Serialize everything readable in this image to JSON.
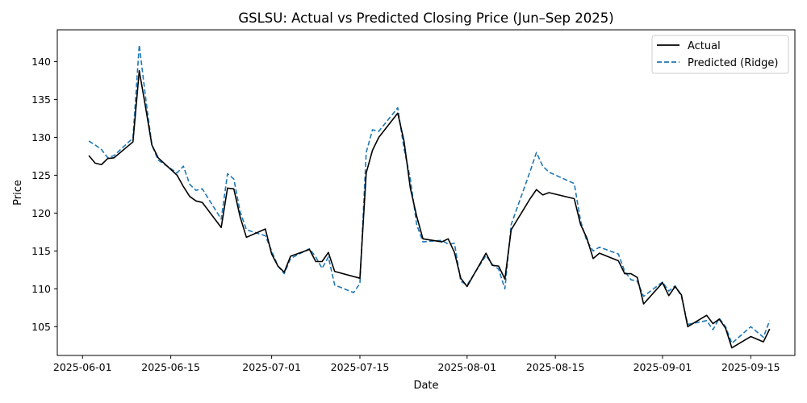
{
  "chart_data": {
    "type": "line",
    "title": "GSLSU: Actual vs Predicted Closing Price (Jun–Sep 2025)",
    "xlabel": "Date",
    "ylabel": "Price",
    "x_ticks": [
      "2025-06-01",
      "2025-06-15",
      "2025-07-01",
      "2025-07-15",
      "2025-08-01",
      "2025-08-15",
      "2025-09-01",
      "2025-09-15"
    ],
    "y_ticks": [
      105,
      110,
      115,
      120,
      125,
      130,
      135,
      140
    ],
    "xlim": [
      "2025-05-28",
      "2025-09-22"
    ],
    "ylim": [
      101.2,
      144.2
    ],
    "grid": false,
    "legend_position": "top-right",
    "series": [
      {
        "name": "Actual",
        "color": "#000000",
        "style": "solid",
        "points": [
          [
            "2025-06-02",
            127.6
          ],
          [
            "2025-06-03",
            126.6
          ],
          [
            "2025-06-04",
            126.4
          ],
          [
            "2025-06-05",
            127.2
          ],
          [
            "2025-06-06",
            127.3
          ],
          [
            "2025-06-09",
            129.4
          ],
          [
            "2025-06-10",
            138.8
          ],
          [
            "2025-06-11",
            134.0
          ],
          [
            "2025-06-12",
            129.0
          ],
          [
            "2025-06-13",
            127.3
          ],
          [
            "2025-06-16",
            125.0
          ],
          [
            "2025-06-17",
            123.5
          ],
          [
            "2025-06-18",
            122.2
          ],
          [
            "2025-06-19",
            121.6
          ],
          [
            "2025-06-20",
            121.4
          ],
          [
            "2025-06-23",
            118.1
          ],
          [
            "2025-06-24",
            123.3
          ],
          [
            "2025-06-25",
            123.2
          ],
          [
            "2025-06-26",
            119.5
          ],
          [
            "2025-06-27",
            116.8
          ],
          [
            "2025-06-30",
            117.9
          ],
          [
            "2025-07-01",
            114.6
          ],
          [
            "2025-07-02",
            113.0
          ],
          [
            "2025-07-03",
            112.2
          ],
          [
            "2025-07-04",
            114.3
          ],
          [
            "2025-07-07",
            115.2
          ],
          [
            "2025-07-08",
            113.6
          ],
          [
            "2025-07-09",
            113.6
          ],
          [
            "2025-07-10",
            114.8
          ],
          [
            "2025-07-11",
            112.3
          ],
          [
            "2025-07-15",
            111.4
          ],
          [
            "2025-07-16",
            125.3
          ],
          [
            "2025-07-17",
            128.3
          ],
          [
            "2025-07-18",
            130.0
          ],
          [
            "2025-07-21",
            133.2
          ],
          [
            "2025-07-22",
            129.5
          ],
          [
            "2025-07-23",
            123.3
          ],
          [
            "2025-07-24",
            119.6
          ],
          [
            "2025-07-25",
            116.6
          ],
          [
            "2025-07-28",
            116.2
          ],
          [
            "2025-07-29",
            116.6
          ],
          [
            "2025-07-30",
            114.8
          ],
          [
            "2025-07-31",
            111.4
          ],
          [
            "2025-08-01",
            110.3
          ],
          [
            "2025-08-04",
            114.7
          ],
          [
            "2025-08-05",
            113.1
          ],
          [
            "2025-08-06",
            113.0
          ],
          [
            "2025-08-07",
            111.3
          ],
          [
            "2025-08-08",
            117.8
          ],
          [
            "2025-08-11",
            121.9
          ],
          [
            "2025-08-12",
            123.1
          ],
          [
            "2025-08-13",
            122.4
          ],
          [
            "2025-08-14",
            122.7
          ],
          [
            "2025-08-18",
            121.9
          ],
          [
            "2025-08-19",
            118.5
          ],
          [
            "2025-08-20",
            116.7
          ],
          [
            "2025-08-21",
            114.0
          ],
          [
            "2025-08-22",
            114.7
          ],
          [
            "2025-08-25",
            113.7
          ],
          [
            "2025-08-26",
            112.0
          ],
          [
            "2025-08-27",
            112.0
          ],
          [
            "2025-08-28",
            111.5
          ],
          [
            "2025-08-29",
            108.0
          ],
          [
            "2025-09-01",
            110.8
          ],
          [
            "2025-09-02",
            109.1
          ],
          [
            "2025-09-03",
            110.3
          ],
          [
            "2025-09-04",
            109.2
          ],
          [
            "2025-09-05",
            105.0
          ],
          [
            "2025-09-08",
            106.5
          ],
          [
            "2025-09-09",
            105.4
          ],
          [
            "2025-09-10",
            106.0
          ],
          [
            "2025-09-11",
            104.8
          ],
          [
            "2025-09-12",
            102.2
          ],
          [
            "2025-09-15",
            103.7
          ],
          [
            "2025-09-17",
            103.0
          ],
          [
            "2025-09-18",
            104.7
          ]
        ]
      },
      {
        "name": "Predicted (Ridge)",
        "color": "#1f77b4",
        "style": "dashed",
        "points": [
          [
            "2025-06-02",
            129.5
          ],
          [
            "2025-06-03",
            129.0
          ],
          [
            "2025-06-04",
            128.4
          ],
          [
            "2025-06-05",
            127.3
          ],
          [
            "2025-06-06",
            127.6
          ],
          [
            "2025-06-09",
            129.9
          ],
          [
            "2025-06-10",
            142.2
          ],
          [
            "2025-06-11",
            135.3
          ],
          [
            "2025-06-12",
            129.0
          ],
          [
            "2025-06-13",
            127.0
          ],
          [
            "2025-06-16",
            125.3
          ],
          [
            "2025-06-17",
            126.2
          ],
          [
            "2025-06-18",
            123.8
          ],
          [
            "2025-06-19",
            123.0
          ],
          [
            "2025-06-20",
            123.2
          ],
          [
            "2025-06-23",
            119.2
          ],
          [
            "2025-06-24",
            125.2
          ],
          [
            "2025-06-25",
            124.5
          ],
          [
            "2025-06-26",
            120.2
          ],
          [
            "2025-06-27",
            117.8
          ],
          [
            "2025-06-30",
            117.0
          ],
          [
            "2025-07-01",
            115.0
          ],
          [
            "2025-07-02",
            113.0
          ],
          [
            "2025-07-03",
            112.0
          ],
          [
            "2025-07-04",
            114.0
          ],
          [
            "2025-07-07",
            115.3
          ],
          [
            "2025-07-08",
            114.2
          ],
          [
            "2025-07-09",
            112.7
          ],
          [
            "2025-07-10",
            114.2
          ],
          [
            "2025-07-11",
            110.5
          ],
          [
            "2025-07-14",
            109.5
          ],
          [
            "2025-07-15",
            110.7
          ],
          [
            "2025-07-16",
            128.0
          ],
          [
            "2025-07-17",
            131.0
          ],
          [
            "2025-07-18",
            130.8
          ],
          [
            "2025-07-21",
            133.9
          ],
          [
            "2025-07-22",
            128.5
          ],
          [
            "2025-07-23",
            124.5
          ],
          [
            "2025-07-24",
            118.5
          ],
          [
            "2025-07-25",
            116.2
          ],
          [
            "2025-07-28",
            116.4
          ],
          [
            "2025-07-29",
            115.9
          ],
          [
            "2025-07-30",
            116.0
          ],
          [
            "2025-07-31",
            111.0
          ],
          [
            "2025-08-01",
            110.5
          ],
          [
            "2025-08-04",
            114.4
          ],
          [
            "2025-08-05",
            113.2
          ],
          [
            "2025-08-06",
            112.6
          ],
          [
            "2025-08-07",
            110.0
          ],
          [
            "2025-08-08",
            118.5
          ],
          [
            "2025-08-11",
            125.5
          ],
          [
            "2025-08-12",
            128.0
          ],
          [
            "2025-08-13",
            126.2
          ],
          [
            "2025-08-14",
            125.4
          ],
          [
            "2025-08-18",
            123.9
          ],
          [
            "2025-08-19",
            119.0
          ],
          [
            "2025-08-20",
            116.3
          ],
          [
            "2025-08-21",
            115.0
          ],
          [
            "2025-08-22",
            115.5
          ],
          [
            "2025-08-25",
            114.6
          ],
          [
            "2025-08-26",
            112.3
          ],
          [
            "2025-08-27",
            111.2
          ],
          [
            "2025-08-28",
            111.0
          ],
          [
            "2025-08-29",
            109.0
          ],
          [
            "2025-09-01",
            110.9
          ],
          [
            "2025-09-02",
            109.7
          ],
          [
            "2025-09-03",
            110.4
          ],
          [
            "2025-09-04",
            109.0
          ],
          [
            "2025-09-05",
            105.3
          ],
          [
            "2025-09-08",
            105.8
          ],
          [
            "2025-09-09",
            104.6
          ],
          [
            "2025-09-10",
            106.1
          ],
          [
            "2025-09-11",
            105.0
          ],
          [
            "2025-09-12",
            102.8
          ],
          [
            "2025-09-15",
            105.0
          ],
          [
            "2025-09-17",
            103.6
          ],
          [
            "2025-09-18",
            105.8
          ]
        ]
      }
    ]
  }
}
